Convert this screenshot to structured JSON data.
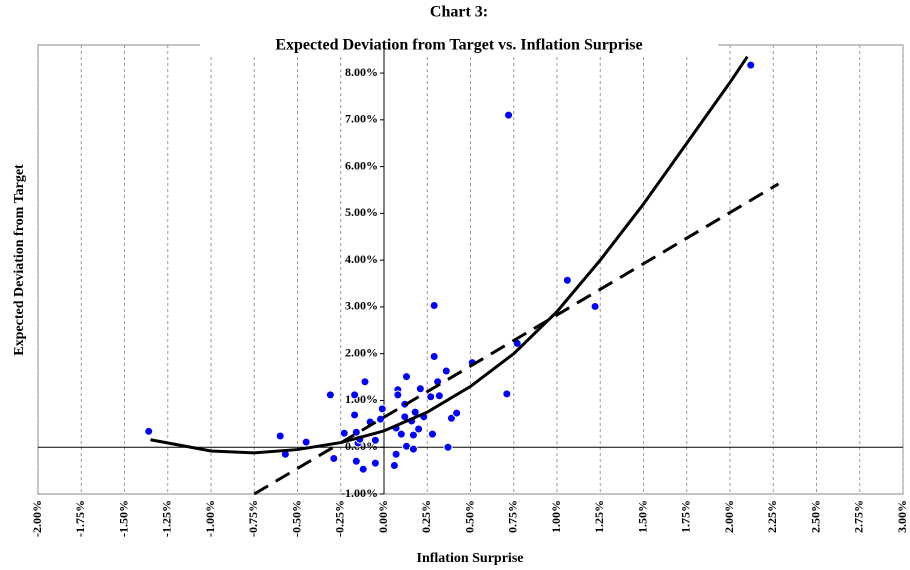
{
  "chart_data": {
    "type": "scatter",
    "title": "Chart 3:",
    "subtitle": "Expected Deviation from Target vs. Inflation Surprise",
    "x_label": "Inflation Surprise",
    "y_label": "Expected Deviation from Target",
    "color": "#0000ff",
    "x": [
      -1.36,
      -0.6,
      -0.57,
      -0.45,
      -0.31,
      -0.29,
      -0.23,
      -0.17,
      -0.17,
      -0.11,
      -0.16,
      -0.15,
      -0.14,
      -0.16,
      -0.12,
      -0.08,
      -0.05,
      -0.05,
      -0.02,
      -0.01,
      0.06,
      0.07,
      0.07,
      0.08,
      0.08,
      0.1,
      0.12,
      0.12,
      0.13,
      0.13,
      0.16,
      0.17,
      0.18,
      0.17,
      0.2,
      0.21,
      0.23,
      0.27,
      0.28,
      0.29,
      0.29,
      0.31,
      0.32,
      0.36,
      0.37,
      0.39,
      0.42,
      0.51,
      0.71,
      0.72,
      0.77,
      1.06,
      1.22,
      2.12
    ],
    "values": [
      0.34,
      0.24,
      -0.15,
      0.11,
      1.12,
      -0.24,
      0.3,
      0.69,
      1.12,
      1.4,
      0.32,
      0.09,
      0.17,
      -0.3,
      -0.47,
      0.54,
      0.15,
      -0.34,
      0.6,
      0.82,
      -0.39,
      -0.15,
      0.41,
      1.23,
      1.12,
      0.28,
      0.65,
      0.92,
      0.02,
      1.51,
      0.56,
      0.26,
      0.75,
      -0.04,
      0.39,
      1.25,
      0.65,
      1.08,
      0.28,
      1.94,
      3.03,
      1.4,
      1.1,
      1.63,
      0.0,
      0.62,
      0.73,
      1.81,
      1.14,
      7.1,
      2.22,
      3.57,
      3.01,
      8.17
    ],
    "lines": [
      {
        "color": "#000000",
        "dashed": false,
        "x": [
          -1.35,
          -1.0,
          -0.75,
          -0.5,
          -0.25,
          0,
          0.25,
          0.5,
          0.75,
          1.0,
          1.25,
          1.5,
          1.75,
          2.0,
          2.1
        ],
        "values": [
          0.16,
          -0.08,
          -0.12,
          -0.05,
          0.1,
          0.35,
          0.75,
          1.3,
          2.0,
          2.9,
          4.0,
          5.2,
          6.5,
          7.8,
          8.35
        ]
      },
      {
        "color": "#000000",
        "dashed": true,
        "x": [
          -0.75,
          2.28
        ],
        "values": [
          -1.0,
          5.63
        ]
      }
    ],
    "xlim": [
      -2,
      3
    ],
    "ylim": [
      -1,
      8.6
    ],
    "xticks": [
      {
        "value": -2,
        "label": "-2.00%"
      },
      {
        "value": -1.75,
        "label": "-1.75%"
      },
      {
        "value": -1.5,
        "label": "-1.50%"
      },
      {
        "value": -1.25,
        "label": "-1.25%"
      },
      {
        "value": -1,
        "label": "-1.00%"
      },
      {
        "value": -0.75,
        "label": "-0.75%"
      },
      {
        "value": -0.5,
        "label": "-0.50%"
      },
      {
        "value": -0.25,
        "label": "-0.25%"
      },
      {
        "value": 0,
        "label": "0.00%"
      },
      {
        "value": 0.25,
        "label": "0.25%"
      },
      {
        "value": 0.5,
        "label": "0.50%"
      },
      {
        "value": 0.75,
        "label": "0.75%"
      },
      {
        "value": 1,
        "label": "1.00%"
      },
      {
        "value": 1.25,
        "label": "1.25%"
      },
      {
        "value": 1.5,
        "label": "1.50%"
      },
      {
        "value": 1.75,
        "label": "1.75%"
      },
      {
        "value": 2,
        "label": "2.00%"
      },
      {
        "value": 2.25,
        "label": "2.25%"
      },
      {
        "value": 2.5,
        "label": "2.50%"
      },
      {
        "value": 2.75,
        "label": "2.75%"
      },
      {
        "value": 3,
        "label": "3.00%"
      }
    ],
    "yticks": [
      {
        "value": -1,
        "label": "-1.00%"
      },
      {
        "value": 0,
        "label": "0.00%"
      },
      {
        "value": 1,
        "label": "1.00%"
      },
      {
        "value": 2,
        "label": "2.00%"
      },
      {
        "value": 3,
        "label": "3.00%"
      },
      {
        "value": 4,
        "label": "4.00%"
      },
      {
        "value": 5,
        "label": "5.00%"
      },
      {
        "value": 6,
        "label": "6.00%"
      },
      {
        "value": 7,
        "label": "7.00%"
      },
      {
        "value": 8,
        "label": "8.00%"
      }
    ],
    "grid": true
  }
}
